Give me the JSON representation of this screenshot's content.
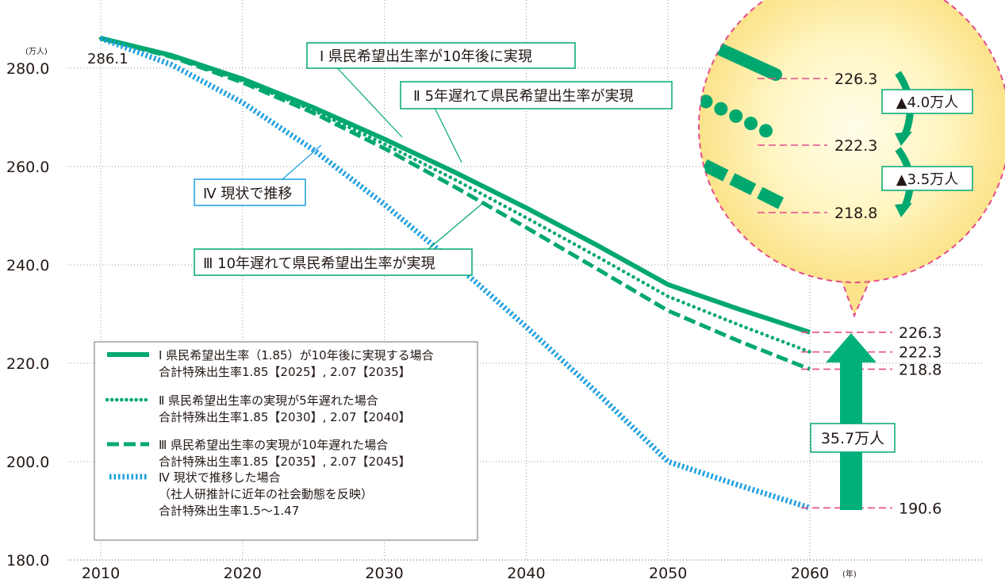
{
  "chart_data": {
    "type": "line",
    "x_unit": "(年)",
    "y_unit": "(万人)",
    "xlim": [
      2010,
      2060
    ],
    "ylim": [
      180,
      280
    ],
    "x_ticks": [
      "2010",
      "2020",
      "2030",
      "2040",
      "2050",
      "2060"
    ],
    "y_ticks": [
      "280.0",
      "260.0",
      "240.0",
      "220.0",
      "200.0",
      "180.0"
    ],
    "grid": true,
    "start_label": "286.1",
    "series": [
      {
        "key": "s1",
        "name": "Ⅰ 県民希望出生率が10年後に実現",
        "style": "solid",
        "color": "#00A870",
        "x": [
          2010,
          2015,
          2020,
          2025,
          2030,
          2035,
          2040,
          2045,
          2050,
          2055,
          2060
        ],
        "values": [
          286.1,
          282.6,
          277.8,
          272.0,
          265.6,
          258.8,
          251.6,
          244.0,
          236.0,
          231.0,
          226.3
        ],
        "end_label": "226.3"
      },
      {
        "key": "s2",
        "name": "Ⅱ 5年遅れて県民希望出生率が実現",
        "style": "dotted",
        "color": "#00A870",
        "x": [
          2010,
          2015,
          2020,
          2025,
          2030,
          2035,
          2040,
          2045,
          2050,
          2055,
          2060
        ],
        "values": [
          286.1,
          282.4,
          277.4,
          271.4,
          264.6,
          257.3,
          249.6,
          241.7,
          233.6,
          227.8,
          222.3
        ],
        "end_label": "222.3"
      },
      {
        "key": "s3",
        "name": "Ⅲ 10年遅れて県民希望出生率が実現",
        "style": "dashed",
        "color": "#00A870",
        "x": [
          2010,
          2015,
          2020,
          2025,
          2030,
          2035,
          2040,
          2045,
          2050,
          2055,
          2060
        ],
        "values": [
          286.1,
          282.3,
          277.1,
          270.9,
          263.7,
          255.8,
          247.6,
          239.2,
          230.7,
          224.5,
          218.8
        ],
        "end_label": "218.8"
      },
      {
        "key": "s4",
        "name": "Ⅳ 現状で推移",
        "style": "striped",
        "color": "#1C9FE0",
        "x": [
          2010,
          2015,
          2020,
          2025,
          2030,
          2035,
          2040,
          2045,
          2050,
          2055,
          2060
        ],
        "values": [
          286.1,
          280.7,
          273.0,
          263.4,
          252.3,
          240.2,
          227.4,
          214.0,
          200.0,
          195.2,
          190.6
        ],
        "end_label": "190.6"
      }
    ],
    "callouts": {
      "s1": "Ⅰ 県民希望出生率が10年後に実現",
      "s2": "Ⅱ 5年遅れて県民希望出生率が実現",
      "s3": "Ⅲ 10年遅れて県民希望出生率が実現",
      "s4": "Ⅳ 現状で推移"
    },
    "legend": [
      {
        "key": "s1",
        "lines": [
          "Ⅰ 県民希望出生率（1.85）が10年後に実現する場合",
          "合計特殊出生率1.85【2025】, 2.07【2035】"
        ]
      },
      {
        "key": "s2",
        "lines": [
          "Ⅱ 県民希望出生率の実現が5年遅れた場合",
          "合計特殊出生率1.85【2030】, 2.07【2040】"
        ]
      },
      {
        "key": "s3",
        "lines": [
          "Ⅲ 県民希望出生率の実現が10年遅れた場合",
          "合計特殊出生率1.85【2035】, 2.07【2045】"
        ]
      },
      {
        "key": "s4",
        "lines": [
          "Ⅳ 現状で推移した場合",
          "（社人研推計に近年の社会動態を反映）",
          "合計特殊出生率1.5〜1.47"
        ]
      }
    ],
    "legend_position": "bottom-left",
    "difference_label": "35.7万人",
    "zoom": {
      "values": [
        "226.3",
        "222.3",
        "218.8"
      ],
      "diffs": [
        "▲4.0万人",
        "▲3.5万人"
      ]
    },
    "colors": {
      "green": "#00A870",
      "blue": "#1C9FE0",
      "pink": "#E64B8C",
      "grid": "#9A9A9A"
    }
  }
}
